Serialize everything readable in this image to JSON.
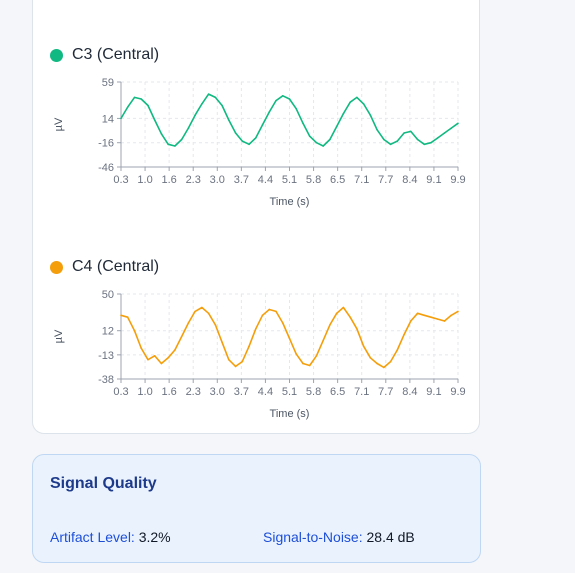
{
  "chart_data": [
    {
      "type": "line",
      "legend": "C3 (Central)",
      "color": "#10b981",
      "xlabel": "Time (s)",
      "ylabel": "µV",
      "yticks": [
        "59",
        "14",
        "-16",
        "-46"
      ],
      "ytick_values": [
        59,
        14,
        -16,
        -46
      ],
      "ylim": [
        -46,
        59
      ],
      "xticks": [
        "0.3",
        "1.0",
        "1.6",
        "2.3",
        "3.0",
        "3.7",
        "4.4",
        "5.1",
        "5.8",
        "6.5",
        "7.1",
        "7.7",
        "8.4",
        "9.1",
        "9.9"
      ],
      "xlim": [
        0,
        10
      ],
      "x": [
        0,
        0.2,
        0.4,
        0.6,
        0.8,
        1.0,
        1.2,
        1.4,
        1.6,
        1.8,
        2.0,
        2.2,
        2.4,
        2.6,
        2.8,
        3.0,
        3.2,
        3.4,
        3.6,
        3.8,
        4.0,
        4.2,
        4.4,
        4.6,
        4.8,
        5.0,
        5.2,
        5.4,
        5.6,
        5.8,
        6.0,
        6.2,
        6.4,
        6.6,
        6.8,
        7.0,
        7.2,
        7.4,
        7.6,
        7.8,
        8.0,
        8.2,
        8.4,
        8.6,
        8.8,
        9.0,
        9.2,
        9.4,
        9.6,
        9.8,
        10.0
      ],
      "y": [
        14,
        28,
        40,
        38,
        30,
        12,
        -5,
        -18,
        -20,
        -12,
        2,
        18,
        32,
        44,
        40,
        30,
        12,
        -4,
        -14,
        -18,
        -10,
        6,
        22,
        36,
        42,
        38,
        26,
        8,
        -8,
        -16,
        -20,
        -12,
        4,
        20,
        34,
        40,
        32,
        18,
        0,
        -12,
        -18,
        -14,
        -4,
        -2,
        -12,
        -18,
        -16,
        -10,
        -4,
        2,
        8
      ]
    },
    {
      "type": "line",
      "legend": "C4 (Central)",
      "color": "#f59e0b",
      "xlabel": "Time (s)",
      "ylabel": "µV",
      "yticks": [
        "50",
        "12",
        "-13",
        "-38"
      ],
      "ytick_values": [
        50,
        12,
        -13,
        -38
      ],
      "ylim": [
        -38,
        50
      ],
      "xticks": [
        "0.3",
        "1.0",
        "1.6",
        "2.3",
        "3.0",
        "3.7",
        "4.4",
        "5.1",
        "5.8",
        "6.5",
        "7.1",
        "7.7",
        "8.4",
        "9.1",
        "9.9"
      ],
      "xlim": [
        0,
        10
      ],
      "x": [
        0,
        0.2,
        0.4,
        0.6,
        0.8,
        1.0,
        1.2,
        1.4,
        1.6,
        1.8,
        2.0,
        2.2,
        2.4,
        2.6,
        2.8,
        3.0,
        3.2,
        3.4,
        3.6,
        3.8,
        4.0,
        4.2,
        4.4,
        4.6,
        4.8,
        5.0,
        5.2,
        5.4,
        5.6,
        5.8,
        6.0,
        6.2,
        6.4,
        6.6,
        6.8,
        7.0,
        7.2,
        7.4,
        7.6,
        7.8,
        8.0,
        8.2,
        8.4,
        8.6,
        8.8,
        9.0,
        9.2,
        9.4,
        9.6,
        9.8,
        10.0
      ],
      "y": [
        28,
        26,
        12,
        -6,
        -18,
        -14,
        -22,
        -16,
        -8,
        6,
        20,
        32,
        36,
        30,
        18,
        0,
        -18,
        -25,
        -20,
        -4,
        14,
        28,
        34,
        32,
        20,
        4,
        -12,
        -22,
        -24,
        -14,
        2,
        18,
        30,
        36,
        26,
        14,
        -4,
        -16,
        -22,
        -26,
        -20,
        -8,
        8,
        22,
        30,
        28,
        26,
        24,
        22,
        28,
        32
      ]
    }
  ],
  "signal_quality": {
    "title": "Signal Quality",
    "artifact_label": "Artifact Level:",
    "artifact_value": "3.2%",
    "snr_label": "Signal-to-Noise:",
    "snr_value": "28.4 dB"
  }
}
